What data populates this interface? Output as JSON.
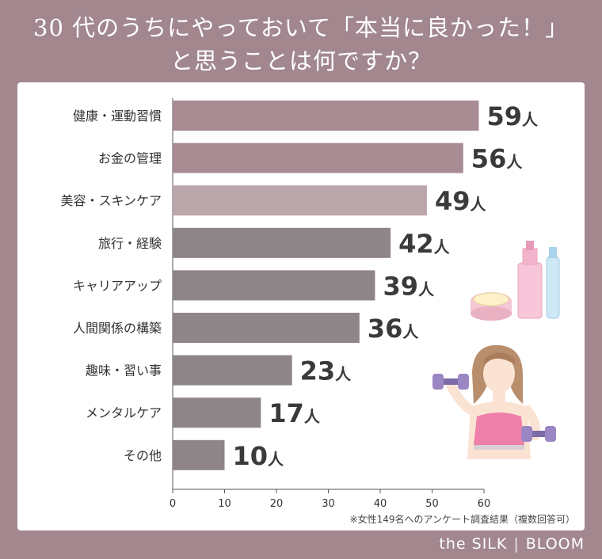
{
  "title": {
    "line1": "30 代のうちにやっておいて「本当に良かった！」",
    "line2": "と思うことは何ですか？"
  },
  "chart_data": {
    "type": "bar",
    "orientation": "horizontal",
    "categories": [
      "健康・運動習慣",
      "お金の管理",
      "美容・スキンケア",
      "旅行・経験",
      "キャリアアップ",
      "人間関係の構築",
      "趣味・習い事",
      "メンタルケア",
      "その他"
    ],
    "values": [
      59,
      56,
      49,
      42,
      39,
      36,
      23,
      17,
      10
    ],
    "value_suffix": "人",
    "bar_colors": [
      "#a88b93",
      "#a88b93",
      "#bba6ac",
      "#8e8588",
      "#8e8588",
      "#8e8588",
      "#8e8588",
      "#8e8588",
      "#8e8588"
    ],
    "xlim": [
      0,
      60
    ],
    "xticks": [
      0,
      10,
      20,
      30,
      40,
      50,
      60
    ],
    "grid": false,
    "legend": "none"
  },
  "note": "※女性149名へのアンケート調査結果（複数回答可）",
  "brand": {
    "left": "the SILK",
    "right": "BLOOM"
  },
  "illustrations": {
    "cosmetics": "cosmetics-illustration",
    "woman": "woman-with-dumbbells-illustration"
  },
  "colors": {
    "background": "#a2878f",
    "panel": "#ffffff",
    "label_text": "#333333",
    "value_text": "#3a3a3a"
  }
}
